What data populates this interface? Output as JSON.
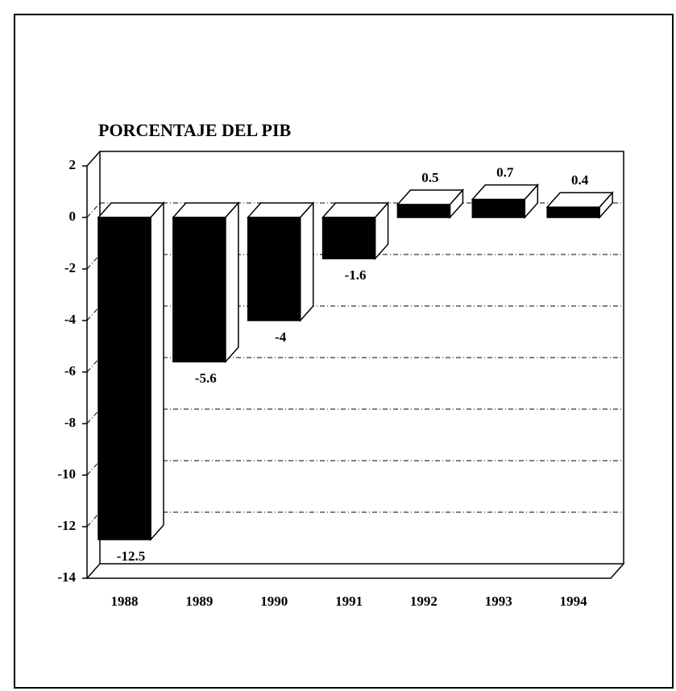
{
  "chart_data": {
    "type": "bar3d",
    "title": "PORCENTAJE DEL PIB",
    "categories": [
      "1988",
      "1989",
      "1990",
      "1991",
      "1992",
      "1993",
      "1994"
    ],
    "values": [
      -12.5,
      -5.6,
      -4,
      -1.6,
      0.5,
      0.7,
      0.4
    ],
    "color": "#000000",
    "ylim": [
      -14,
      2
    ],
    "yticks": [
      -14,
      -12,
      -10,
      -8,
      -6,
      -4,
      -2,
      0,
      2
    ],
    "grid": true
  }
}
